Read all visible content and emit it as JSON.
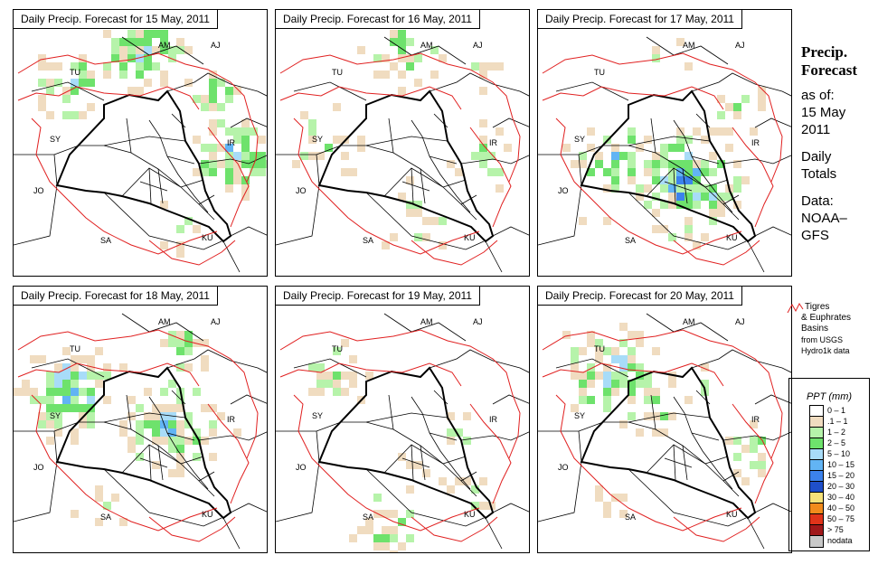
{
  "panels": [
    {
      "title": "Daily Precip. Forecast for  15 May, 2011"
    },
    {
      "title": "Daily Precip. Forecast for  16 May, 2011"
    },
    {
      "title": "Daily Precip. Forecast for  17 May, 2011"
    },
    {
      "title": "Daily Precip. Forecast for  18 May, 2011"
    },
    {
      "title": "Daily Precip. Forecast for  19 May, 2011"
    },
    {
      "title": "Daily Precip. Forecast for  20 May, 2011"
    }
  ],
  "map_labels": {
    "am": "AM",
    "aj": "AJ",
    "tu": "TU",
    "sy": "SY",
    "ir": "IR",
    "jo": "JO",
    "sa": "SA",
    "ku": "KU"
  },
  "side": {
    "title1": "Precip.",
    "title2": "Forecast",
    "asof": "as of:",
    "date1": "15 May",
    "date2": "2011",
    "daily1": "Daily",
    "daily2": "Totals",
    "data1": "Data:",
    "data2": "NOAA–",
    "data3": "GFS"
  },
  "basin_key": {
    "line1": "Tigres",
    "line2": "& Euphrates",
    "line3": "Basins",
    "line4": "from USGS",
    "line5": "Hydro1k data"
  },
  "legend": {
    "title": "PPT (mm)",
    "items": [
      {
        "label": "0 – 1",
        "color": "#ffffff"
      },
      {
        "label": ".1 – 1",
        "color": "#f0dcc0"
      },
      {
        "label": "1 – 2",
        "color": "#b6f3aa"
      },
      {
        "label": "2 – 5",
        "color": "#6ee26c"
      },
      {
        "label": "5 – 10",
        "color": "#a8dcf8"
      },
      {
        "label": "10 – 15",
        "color": "#62b4f4"
      },
      {
        "label": "15 – 20",
        "color": "#3c82ec"
      },
      {
        "label": "20 – 30",
        "color": "#1f4fc9"
      },
      {
        "label": "30 – 40",
        "color": "#f6e27a"
      },
      {
        "label": "40 – 50",
        "color": "#f28b1c"
      },
      {
        "label": "50 – 75",
        "color": "#e0341a"
      },
      {
        "label": "> 75",
        "color": "#a0181a"
      },
      {
        "label": "nodata",
        "color": "#c8c8c8"
      }
    ]
  },
  "colors": {
    "basin": "#e02020",
    "border": "#000000"
  }
}
